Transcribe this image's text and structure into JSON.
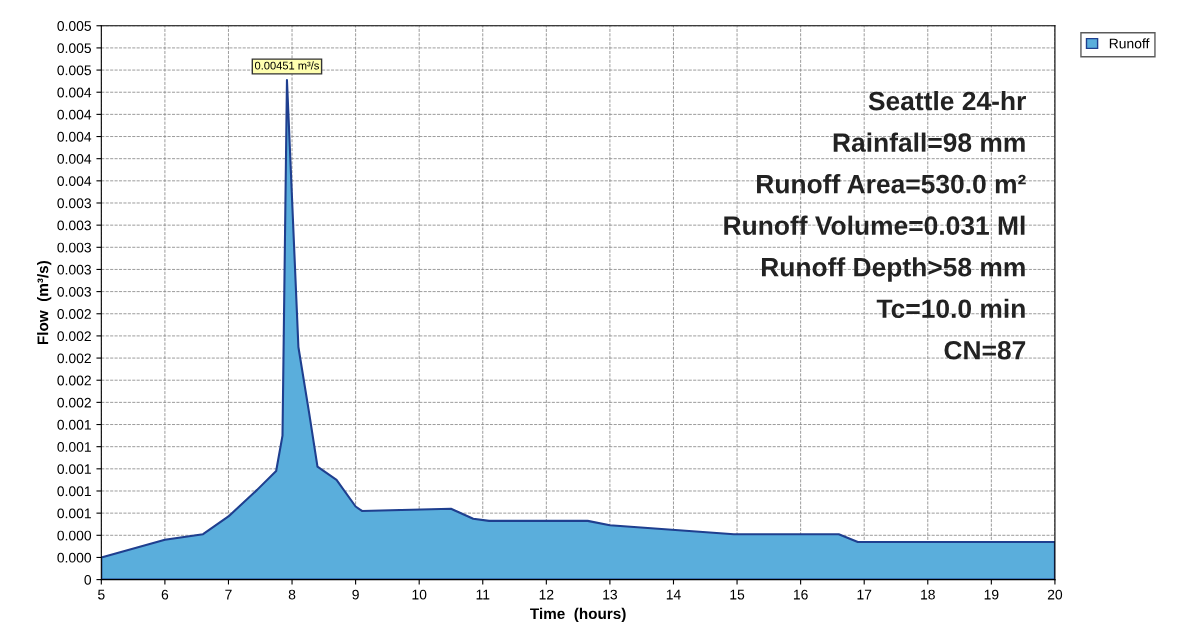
{
  "chart_data": {
    "type": "area",
    "xlabel": "Time  (hours)",
    "ylabel": "Flow  (m³/s)",
    "x": [
      5,
      6,
      6.6,
      7,
      7.45,
      7.75,
      7.85,
      7.92,
      8.1,
      8.27,
      8.4,
      8.7,
      9.0,
      9.1,
      10.5,
      10.85,
      11.1,
      12.65,
      13.0,
      14.95,
      16.6,
      16.9,
      20
    ],
    "series": [
      {
        "name": "Runoff",
        "color": "#5aaedc",
        "values": [
          0.0002,
          0.00036,
          0.00041,
          0.00057,
          0.00081,
          0.00098,
          0.0013,
          0.00451,
          0.0021,
          0.0015,
          0.00102,
          0.0009,
          0.00066,
          0.00062,
          0.00064,
          0.00055,
          0.00053,
          0.00053,
          0.00049,
          0.00041,
          0.00041,
          0.00034,
          0.00034
        ]
      }
    ],
    "xlim": [
      5,
      20
    ],
    "xticks": [
      5,
      6,
      7,
      8,
      9,
      10,
      11,
      12,
      13,
      14,
      15,
      16,
      17,
      18,
      19,
      20
    ],
    "ylim": [
      0,
      0.005
    ],
    "yticks": [
      0,
      {
        "value": 0.0002,
        "label": "0.000"
      },
      {
        "value": 0.0004,
        "label": "0.000"
      },
      {
        "value": 0.0006,
        "label": "0.001"
      },
      {
        "value": 0.0008,
        "label": "0.001"
      },
      {
        "value": 0.001,
        "label": "0.001"
      },
      {
        "value": 0.0012,
        "label": "0.001"
      },
      {
        "value": 0.0014,
        "label": "0.001"
      },
      {
        "value": 0.0016,
        "label": "0.002"
      },
      {
        "value": 0.0018,
        "label": "0.002"
      },
      {
        "value": 0.002,
        "label": "0.002"
      },
      {
        "value": 0.0022,
        "label": "0.002"
      },
      {
        "value": 0.0024,
        "label": "0.002"
      },
      {
        "value": 0.0026,
        "label": "0.003"
      },
      {
        "value": 0.0028,
        "label": "0.003"
      },
      {
        "value": 0.003,
        "label": "0.003"
      },
      {
        "value": 0.0032,
        "label": "0.003"
      },
      {
        "value": 0.0034,
        "label": "0.003"
      },
      {
        "value": 0.0036,
        "label": "0.004"
      },
      {
        "value": 0.0038,
        "label": "0.004"
      },
      {
        "value": 0.004,
        "label": "0.004"
      },
      {
        "value": 0.0042,
        "label": "0.004"
      },
      {
        "value": 0.0044,
        "label": "0.004"
      },
      {
        "value": 0.0046,
        "label": "0.005"
      },
      {
        "value": 0.0048,
        "label": "0.005"
      },
      {
        "value": 0.005,
        "label": "0.005"
      }
    ],
    "annotations": [
      {
        "text": "0.00451 m³/s",
        "x": 7.92,
        "y": 0.00451
      },
      "Seattle 24-hr",
      "Rainfall=98 mm",
      "Runoff Area=530.0 m²",
      "Runoff Volume=0.031 Ml",
      "Runoff Depth>58 mm",
      "Tc=10.0 min",
      "CN=87"
    ],
    "grid": true,
    "legend": "top right"
  }
}
